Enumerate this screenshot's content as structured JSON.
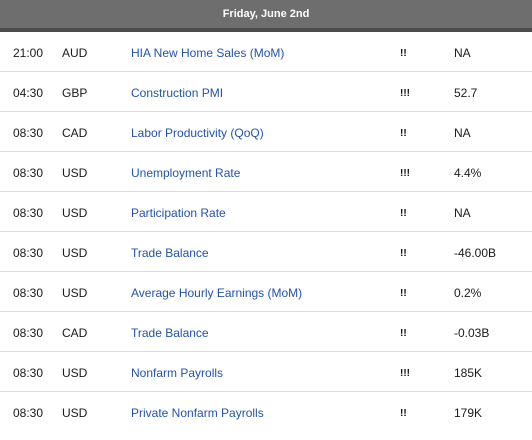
{
  "header": {
    "date": "Friday, June 2nd"
  },
  "events": [
    {
      "time": "21:00",
      "currency": "AUD",
      "event": "HIA New Home Sales (MoM)",
      "impact": "!!",
      "value": "NA"
    },
    {
      "time": "04:30",
      "currency": "GBP",
      "event": "Construction PMI",
      "impact": "!!!",
      "value": "52.7"
    },
    {
      "time": "08:30",
      "currency": "CAD",
      "event": "Labor Productivity (QoQ)",
      "impact": "!!",
      "value": "NA"
    },
    {
      "time": "08:30",
      "currency": "USD",
      "event": "Unemployment Rate",
      "impact": "!!!",
      "value": "4.4%"
    },
    {
      "time": "08:30",
      "currency": "USD",
      "event": "Participation Rate",
      "impact": "!!",
      "value": "NA"
    },
    {
      "time": "08:30",
      "currency": "USD",
      "event": "Trade Balance",
      "impact": "!!",
      "value": "-46.00B"
    },
    {
      "time": "08:30",
      "currency": "USD",
      "event": "Average Hourly Earnings (MoM)",
      "impact": "!!",
      "value": "0.2%"
    },
    {
      "time": "08:30",
      "currency": "CAD",
      "event": "Trade Balance",
      "impact": "!!",
      "value": "-0.03B"
    },
    {
      "time": "08:30",
      "currency": "USD",
      "event": "Nonfarm Payrolls",
      "impact": "!!!",
      "value": "185K"
    },
    {
      "time": "08:30",
      "currency": "USD",
      "event": "Private Nonfarm Payrolls",
      "impact": "!!",
      "value": "179K"
    }
  ]
}
